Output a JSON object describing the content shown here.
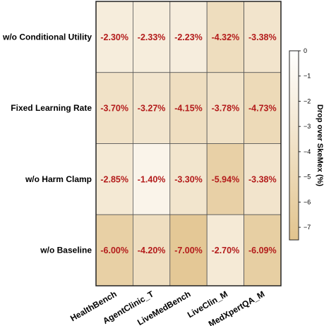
{
  "chart_data": {
    "type": "heatmap",
    "rows": [
      "w/o Conditional Utility",
      "Fixed Learning Rate",
      "w/o Harm Clamp",
      "w/o Baseline"
    ],
    "columns": [
      "HealthBench",
      "AgentClinic_T",
      "LiveMedBench",
      "LiveClin_M",
      "MedXpertQA_M"
    ],
    "values": [
      [
        -2.3,
        -2.33,
        -2.23,
        -4.32,
        -3.38
      ],
      [
        -3.7,
        -3.27,
        -4.15,
        -3.78,
        -4.73
      ],
      [
        -2.85,
        -1.4,
        -3.3,
        -5.94,
        -3.38
      ],
      [
        -6.0,
        -4.2,
        -7.0,
        -2.7,
        -6.09
      ]
    ],
    "labels": [
      [
        "-2.30%",
        "-2.33%",
        "-2.23%",
        "-4.32%",
        "-3.38%"
      ],
      [
        "-3.70%",
        "-3.27%",
        "-4.15%",
        "-3.78%",
        "-4.73%"
      ],
      [
        "-2.85%",
        "-1.40%",
        "-3.30%",
        "-5.94%",
        "-3.38%"
      ],
      [
        "-6.00%",
        "-4.20%",
        "-7.00%",
        "-2.70%",
        "-6.09%"
      ]
    ],
    "colorbar": {
      "title": "Drop over SkeMex (%)",
      "range": [
        -7.5,
        0
      ],
      "ticks": [
        0,
        -1,
        -2,
        -3,
        -4,
        -5,
        -6,
        -7
      ],
      "tick_labels": [
        "0",
        "−1",
        "−2",
        "−3",
        "−4",
        "−5",
        "−6",
        "−7"
      ],
      "color_low": "#e2c48e",
      "color_high": "#ffffff"
    },
    "label_color": "#b31b1b"
  }
}
